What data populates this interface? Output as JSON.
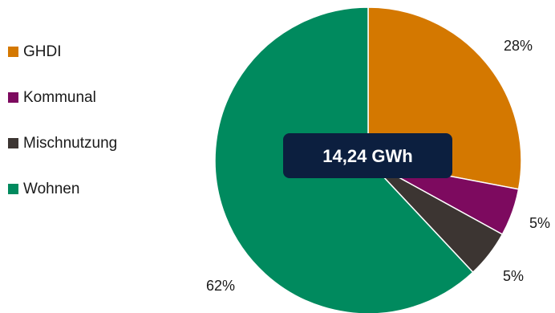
{
  "chart_data": {
    "type": "pie",
    "center_label": "14,24 GWh",
    "start_angle_deg": 0,
    "direction": "clockwise",
    "legend_position": "left",
    "slices": [
      {
        "name": "GHDI",
        "value": 28,
        "label": "28%",
        "color": "#d47800"
      },
      {
        "name": "Kommunal",
        "value": 5,
        "label": "5%",
        "color": "#7d0a5f"
      },
      {
        "name": "Mischnutzung",
        "value": 5,
        "label": "5%",
        "color": "#3c3532"
      },
      {
        "name": "Wohnen",
        "value": 62,
        "label": "62%",
        "color": "#008a5e"
      }
    ]
  },
  "center_box_color": "#0c1f3f"
}
